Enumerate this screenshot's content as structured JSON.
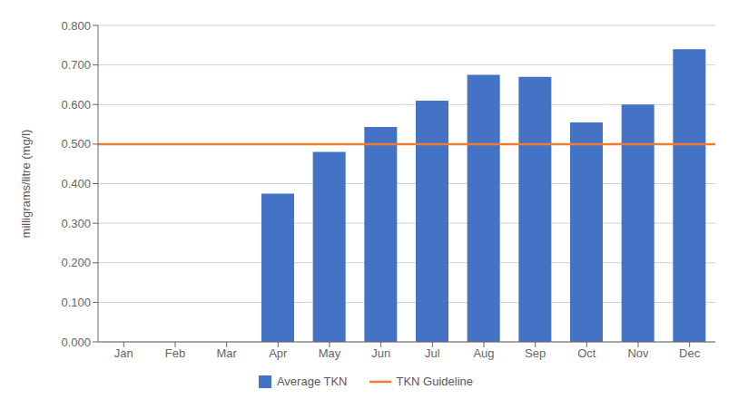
{
  "chart_data": {
    "type": "bar",
    "categories": [
      "Jan",
      "Feb",
      "Mar",
      "Apr",
      "May",
      "Jun",
      "Jul",
      "Aug",
      "Sep",
      "Oct",
      "Nov",
      "Dec"
    ],
    "series": [
      {
        "name": "Average TKN",
        "color": "#4472C4",
        "values": [
          0.0,
          0.0,
          0.0,
          0.375,
          0.48,
          0.543,
          0.61,
          0.675,
          0.67,
          0.555,
          0.6,
          0.74
        ]
      }
    ],
    "guideline": {
      "name": "TKN Guideline",
      "value": 0.5,
      "color": "#ED7D31"
    },
    "ylabel": "milligrams/litre (mg/l)",
    "ylim": [
      0.0,
      0.8
    ],
    "yticks": [
      {
        "value": 0.0,
        "label": "0.000"
      },
      {
        "value": 0.1,
        "label": "0.100"
      },
      {
        "value": 0.2,
        "label": "0.200"
      },
      {
        "value": 0.3,
        "label": "0.300"
      },
      {
        "value": 0.4,
        "label": "0.400"
      },
      {
        "value": 0.5,
        "label": "0.500"
      },
      {
        "value": 0.6,
        "label": "0.600"
      },
      {
        "value": 0.7,
        "label": "0.700"
      },
      {
        "value": 0.8,
        "label": "0.800"
      }
    ],
    "grid": true,
    "legend": "bottom"
  }
}
